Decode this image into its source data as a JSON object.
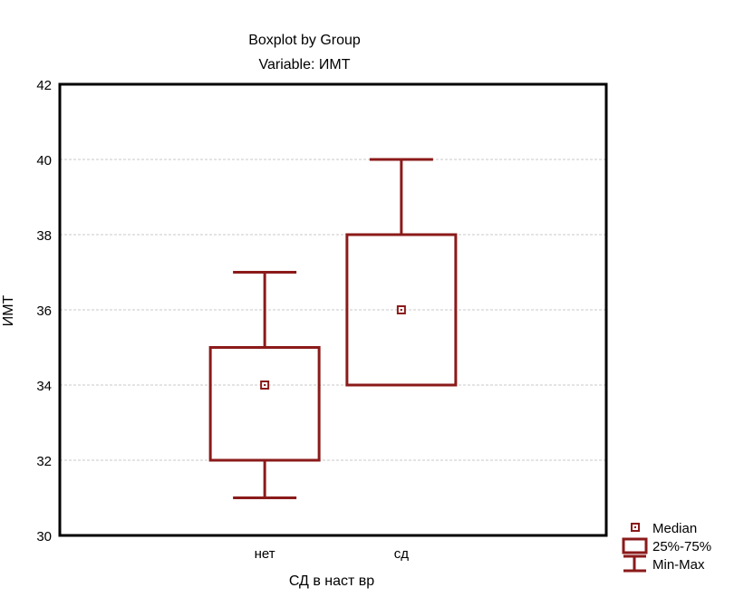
{
  "chart_data": {
    "type": "boxplot",
    "title": "Boxplot by Group",
    "subtitle": "Variable: ИМТ",
    "xlabel": "СД в наст вр",
    "ylabel": "ИМТ",
    "ylim": [
      30,
      42
    ],
    "yticks": [
      30,
      32,
      34,
      36,
      38,
      40,
      42
    ],
    "grid": true,
    "categories": [
      "нет",
      "сд"
    ],
    "series": [
      {
        "category": "нет",
        "median": 34,
        "q1": 32,
        "q3": 35,
        "min": 31,
        "max": 37
      },
      {
        "category": "сд",
        "median": 36,
        "q1": 34,
        "q3": 38,
        "min": 34,
        "max": 40
      }
    ],
    "legend": {
      "position": "bottom-right",
      "items": [
        "Median",
        "25%-75%",
        "Min-Max"
      ]
    },
    "colors": {
      "box": "#8b1a1a",
      "grid": "#c8c8c8"
    }
  }
}
